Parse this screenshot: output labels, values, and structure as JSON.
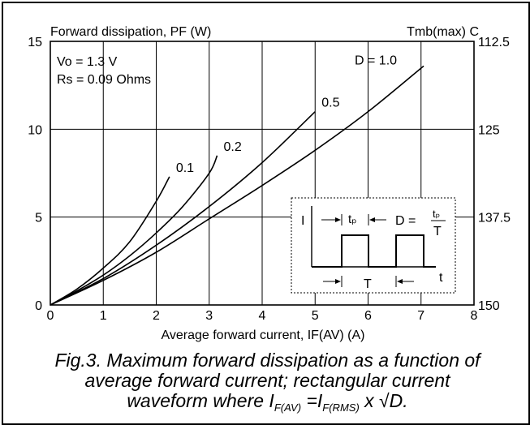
{
  "chart_data": {
    "type": "line",
    "y_title": "Forward dissipation, PF (W)",
    "y2_title": "Tmb(max) C",
    "xlabel": "Average forward current, IF(AV) (A)",
    "xlim": [
      0,
      8
    ],
    "ylim": [
      0,
      15
    ],
    "x_ticks": [
      "0",
      "1",
      "2",
      "3",
      "4",
      "5",
      "6",
      "7",
      "8"
    ],
    "y_ticks": [
      "0",
      "5",
      "10",
      "15"
    ],
    "y2_ticks": [
      "150",
      "137.5",
      "125",
      "112.5"
    ],
    "grid": true,
    "params": [
      "Vo = 1.3 V",
      "Rs = 0.09 Ohms"
    ],
    "series": [
      {
        "name": "0.1",
        "x": [
          0,
          0.5,
          1,
          1.5,
          2,
          2.25
        ],
        "y": [
          0,
          0.9,
          2.1,
          3.6,
          5.9,
          7.3
        ]
      },
      {
        "name": "0.2",
        "x": [
          0,
          0.5,
          1,
          1.5,
          2,
          2.5,
          3,
          3.15
        ],
        "y": [
          0,
          0.8,
          1.7,
          2.8,
          4.1,
          5.6,
          7.5,
          8.5
        ]
      },
      {
        "name": "0.5",
        "x": [
          0,
          1,
          2,
          3,
          4,
          5
        ],
        "y": [
          0,
          1.5,
          3.4,
          5.6,
          8.1,
          11.0
        ]
      },
      {
        "name": "D = 1.0",
        "x": [
          0,
          1,
          2,
          3,
          4,
          5,
          6,
          7.05
        ],
        "y": [
          0,
          1.4,
          3.0,
          4.9,
          6.8,
          8.8,
          11.0,
          13.6
        ]
      }
    ],
    "inset": {
      "i_label": "I",
      "t_label": "t",
      "tp_label": "tₚ",
      "T_label": "T",
      "d_label": "D =",
      "d_num": "tₚ",
      "d_den": "T"
    }
  },
  "caption": {
    "line1": "Fig.3.  Maximum forward dissipation as a function of",
    "line2": "average forward current; rectangular current",
    "line3_a": "waveform where I",
    "line3_sub1": "F(AV)",
    "line3_b": " =I",
    "line3_sub2": "F(RMS)",
    "line3_c": " x √D."
  }
}
